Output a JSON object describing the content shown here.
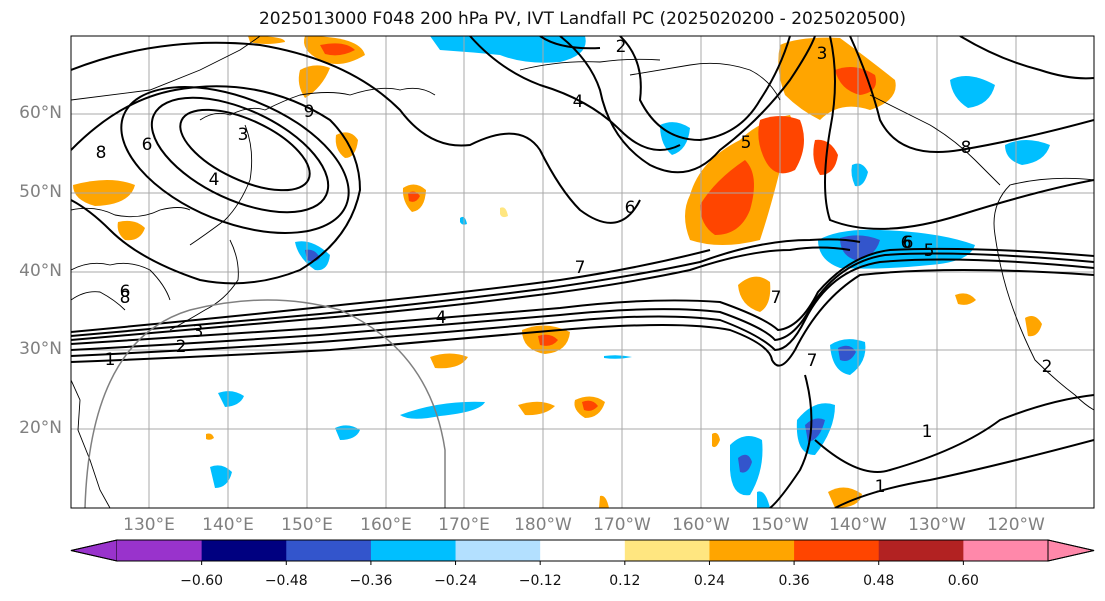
{
  "title": "2025013000 F048 200 hPa PV, IVT Landfall PC (2025020200 - 2025020500)",
  "lat_labels": [
    "60°N",
    "50°N",
    "40°N",
    "30°N",
    "20°N"
  ],
  "lon_labels": [
    "130°E",
    "140°E",
    "150°E",
    "160°E",
    "170°E",
    "180°W",
    "170°W",
    "160°W",
    "150°W",
    "140°W",
    "130°W",
    "120°W"
  ],
  "contour_labels": [
    "8",
    "6",
    "3",
    "4",
    "7",
    "9",
    "6",
    "8",
    "2",
    "4",
    "5",
    "6",
    "8",
    "7",
    "6",
    "5",
    "7",
    "1",
    "2",
    "3",
    "4",
    "1",
    "2",
    "1",
    "6",
    "3"
  ],
  "colorbar": {
    "tick_labels": [
      "−0.60",
      "−0.48",
      "−0.36",
      "−0.24",
      "−0.12",
      "0.12",
      "0.24",
      "0.36",
      "0.48",
      "0.60"
    ],
    "colors": [
      "#9933cc",
      "#000080",
      "#3355cc",
      "#00bfff",
      "#b3e0ff",
      "#ffffff",
      "#ffe680",
      "#ffa500",
      "#ff4500",
      "#b22222",
      "#ff88aa"
    ]
  }
}
